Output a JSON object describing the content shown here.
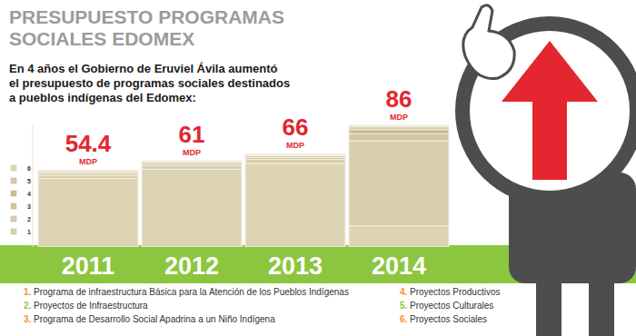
{
  "chart_data": {
    "type": "bar",
    "stacked": true,
    "title": [
      "PRESUPUESTO PROGRAMAS",
      "SOCIALES EDOMEX"
    ],
    "subtitle": [
      "En 4 años el Gobierno de Eruviel Ávila aumentó",
      "el presupuesto de programas sociales destinados",
      "a pueblos indígenas del Edomex:"
    ],
    "categories": [
      "2011",
      "2012",
      "2013",
      "2014"
    ],
    "series": [
      {
        "name": "Programa de infraestructura Básica para la Atención de los Pueblos Indígenas",
        "key": "1",
        "key_label": "1.",
        "color": "#ddd4b4",
        "values": [
          48.4,
          55,
          59,
          15
        ]
      },
      {
        "name": "Proyectos de Infraestructura",
        "key": "2",
        "key_label": "2.",
        "color": "#d9cfac",
        "values": [
          2,
          2.5,
          3,
          60
        ]
      },
      {
        "name": "Programa de Desarrollo Social Apadrina a un Niño Indígena",
        "key": "3",
        "key_label": "3.",
        "color": "#d2c69f",
        "values": [
          1.5,
          1.5,
          1.5,
          5
        ]
      },
      {
        "name": "Proyectos Productivos",
        "key": "4",
        "key_label": "4.",
        "color": "#c9bc92",
        "values": [
          1,
          1,
          1,
          3
        ]
      },
      {
        "name": "Proyectos Culturales",
        "key": "5",
        "key_label": "5.",
        "color": "#d6cca7",
        "values": [
          1,
          0.5,
          1,
          2
        ]
      },
      {
        "name": "Proyectos Sociales",
        "key": "6",
        "key_label": "6.",
        "color": "#e2dac0",
        "values": [
          0.5,
          0.5,
          0.5,
          1
        ]
      }
    ],
    "totals": [
      54.4,
      61,
      66,
      86
    ],
    "total_unit": "MDP",
    "ylim": [
      0,
      86
    ],
    "tick_labels": false,
    "grid": false,
    "legend": "left"
  }
}
